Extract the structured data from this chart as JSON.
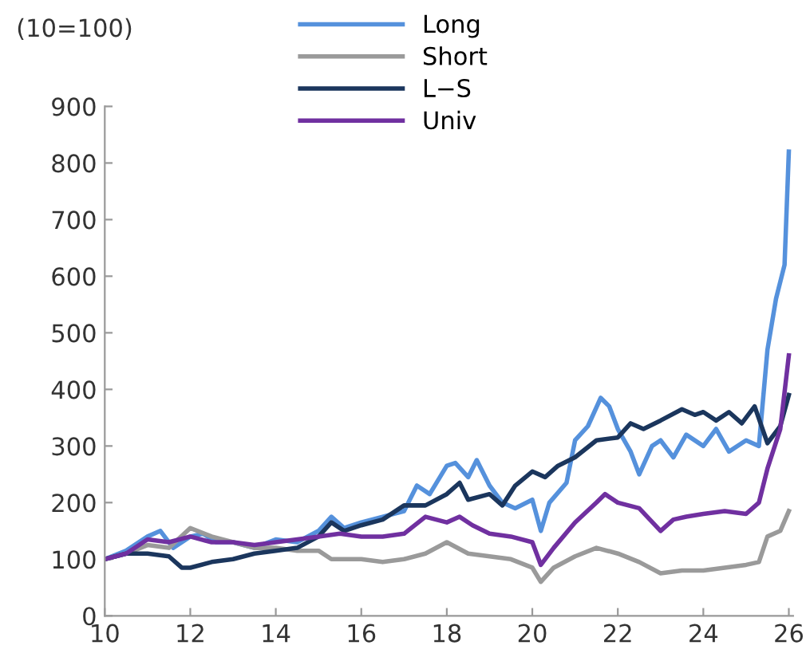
{
  "chart_data": {
    "type": "line",
    "annotations": [
      "(10=100)"
    ],
    "xlim": [
      10,
      26.1
    ],
    "ylim": [
      0,
      900
    ],
    "xticks": [
      10,
      12,
      14,
      16,
      18,
      20,
      22,
      24,
      26
    ],
    "yticks": [
      0,
      100,
      200,
      300,
      400,
      500,
      600,
      700,
      800,
      900
    ],
    "grid": false,
    "legend": "top",
    "marker": "none",
    "line_style": "solid",
    "series": [
      {
        "name": "Long",
        "color": "#5591dc",
        "x": [
          10,
          10.5,
          11,
          11.3,
          11.6,
          12,
          12.3,
          12.6,
          13,
          13.5,
          14,
          14.5,
          15,
          15.3,
          15.6,
          16,
          16.5,
          17,
          17.3,
          17.6,
          18,
          18.2,
          18.5,
          18.7,
          19,
          19.3,
          19.6,
          20,
          20.2,
          20.4,
          20.8,
          21,
          21.3,
          21.6,
          21.8,
          22,
          22.3,
          22.5,
          22.8,
          23,
          23.3,
          23.6,
          24,
          24.3,
          24.6,
          25,
          25.3,
          25.5,
          25.7,
          25.9,
          26
        ],
        "values": [
          100,
          115,
          140,
          150,
          120,
          140,
          145,
          130,
          130,
          120,
          135,
          130,
          150,
          175,
          155,
          165,
          175,
          185,
          230,
          215,
          265,
          270,
          245,
          275,
          230,
          200,
          190,
          205,
          150,
          200,
          235,
          310,
          335,
          385,
          370,
          330,
          290,
          250,
          300,
          310,
          280,
          320,
          300,
          330,
          290,
          310,
          300,
          470,
          560,
          620,
          820
        ]
      },
      {
        "name": "Short",
        "color": "#9a9a9a",
        "x": [
          10,
          10.5,
          11,
          11.5,
          12,
          12.5,
          13,
          13.5,
          14,
          14.5,
          15,
          15.3,
          16,
          16.5,
          17,
          17.5,
          18,
          18.5,
          19,
          19.5,
          20,
          20.2,
          20.5,
          21,
          21.5,
          22,
          22.5,
          23,
          23.5,
          24,
          24.5,
          25,
          25.3,
          25.5,
          25.8,
          26
        ],
        "values": [
          100,
          110,
          125,
          120,
          155,
          140,
          130,
          120,
          120,
          115,
          115,
          100,
          100,
          95,
          100,
          110,
          130,
          110,
          105,
          100,
          85,
          60,
          85,
          105,
          120,
          110,
          95,
          75,
          80,
          80,
          85,
          90,
          95,
          140,
          150,
          185
        ]
      },
      {
        "name": "L−S",
        "color": "#1b365d",
        "x": [
          10,
          10.5,
          11,
          11.5,
          11.8,
          12,
          12.5,
          13,
          13.5,
          14,
          14.5,
          15,
          15.3,
          15.6,
          16,
          16.5,
          17,
          17.5,
          18,
          18.3,
          18.5,
          19,
          19.3,
          19.6,
          20,
          20.3,
          20.6,
          21,
          21.5,
          22,
          22.3,
          22.6,
          23,
          23.5,
          23.8,
          24,
          24.3,
          24.6,
          24.9,
          25.2,
          25.5,
          25.8,
          26
        ],
        "values": [
          100,
          110,
          110,
          105,
          85,
          85,
          95,
          100,
          110,
          115,
          120,
          140,
          165,
          150,
          160,
          170,
          195,
          195,
          215,
          235,
          205,
          215,
          195,
          230,
          255,
          245,
          265,
          280,
          310,
          315,
          340,
          330,
          345,
          365,
          355,
          360,
          345,
          360,
          340,
          370,
          305,
          335,
          390
        ]
      },
      {
        "name": "Univ",
        "color": "#7030a0",
        "x": [
          10,
          10.5,
          11,
          11.5,
          12,
          12.5,
          13,
          13.5,
          14,
          14.5,
          15,
          15.5,
          16,
          16.5,
          17,
          17.5,
          18,
          18.3,
          18.6,
          19,
          19.5,
          20,
          20.2,
          20.5,
          21,
          21.5,
          21.7,
          22,
          22.5,
          23,
          23.3,
          23.6,
          24,
          24.5,
          25,
          25.3,
          25.5,
          25.8,
          26
        ],
        "values": [
          100,
          110,
          135,
          130,
          140,
          130,
          130,
          125,
          130,
          135,
          140,
          145,
          140,
          140,
          145,
          175,
          165,
          175,
          160,
          145,
          140,
          130,
          90,
          120,
          165,
          200,
          215,
          200,
          190,
          150,
          170,
          175,
          180,
          185,
          180,
          200,
          260,
          330,
          460
        ]
      }
    ]
  }
}
